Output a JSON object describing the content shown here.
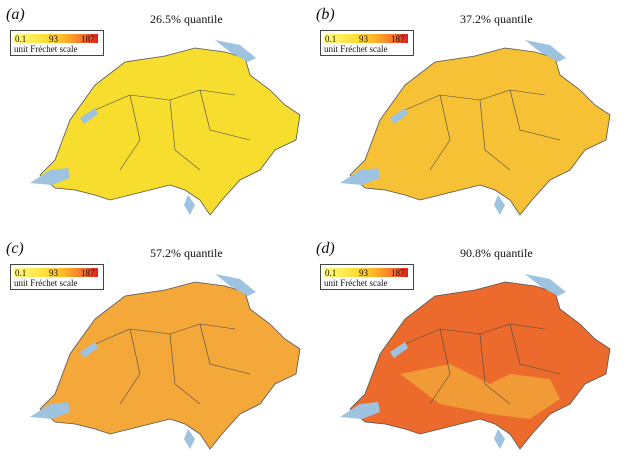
{
  "panels": [
    {
      "label": "(a)",
      "title": "26.5% quantile"
    },
    {
      "label": "(b)",
      "title": "37.2% quantile"
    },
    {
      "label": "(c)",
      "title": "57.2% quantile"
    },
    {
      "label": "(d)",
      "title": "90.8% quantile"
    }
  ],
  "legend": {
    "min": "0.1",
    "mid": "93",
    "max": "187",
    "unit": "unit Fréchet scale"
  },
  "colors": {
    "lake": "#9ec3e0",
    "border": "#3a3a3a",
    "low": "#fffb80",
    "high": "#e31a1c"
  }
}
